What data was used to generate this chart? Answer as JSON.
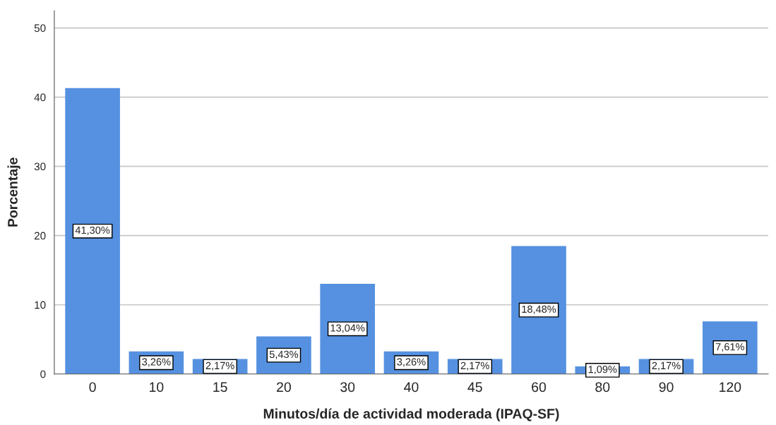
{
  "chart_data": {
    "type": "bar",
    "xlabel": "Minutos/día de actividad moderada (IPAQ-SF)",
    "ylabel": "Porcentaje",
    "categories": [
      "0",
      "10",
      "15",
      "20",
      "30",
      "40",
      "45",
      "60",
      "80",
      "90",
      "120"
    ],
    "values": [
      41.3,
      3.26,
      2.17,
      5.43,
      13.04,
      3.26,
      2.17,
      18.48,
      1.09,
      2.17,
      7.61
    ],
    "value_labels": [
      "41,30%",
      "3,26%",
      "2,17%",
      "5,43%",
      "13,04%",
      "3,26%",
      "2,17%",
      "18,48%",
      "1,09%",
      "2,17%",
      "7,61%"
    ],
    "color": "#5591e0",
    "ylim": [
      0,
      52.5
    ],
    "yticks": [
      0,
      10,
      20,
      30,
      40,
      50
    ],
    "grid": "y",
    "legend": false
  }
}
